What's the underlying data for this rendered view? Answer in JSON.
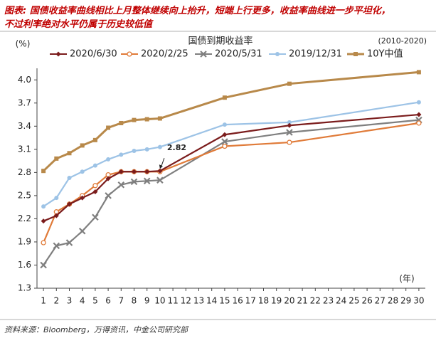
{
  "chart_data": {
    "type": "line",
    "title": [
      "图表: 国债收益率曲线相比上月整体继续向上抬升，短端上行更多，收益率曲线进一步平坦化，",
      "不过利率绝对水平仍属于历史较低值"
    ],
    "subtitle": "国债到期收益率",
    "note": "(2010-2020)",
    "y_label": "(%)",
    "x_label": "(年)",
    "source": "资料来源：Bloomberg，万得资讯，中金公司研究部",
    "x": [
      1,
      2,
      3,
      4,
      5,
      6,
      7,
      8,
      9,
      10,
      15,
      20,
      30
    ],
    "series": [
      {
        "name": "2020/6/30",
        "color": "#7b1c1c",
        "marker": "diamond",
        "values": [
          2.17,
          2.24,
          2.39,
          2.47,
          2.55,
          2.72,
          2.81,
          2.81,
          2.81,
          2.82,
          3.29,
          3.41,
          3.55
        ]
      },
      {
        "name": "2020/2/25",
        "color": "#e07b39",
        "marker": "circle-open",
        "values": [
          1.89,
          2.29,
          2.39,
          2.5,
          2.63,
          2.77,
          2.81,
          2.81,
          2.81,
          2.81,
          3.14,
          3.19,
          3.44
        ]
      },
      {
        "name": "2020/5/31",
        "color": "#7f7f7f",
        "marker": "x",
        "values": [
          1.6,
          1.85,
          1.89,
          2.04,
          2.22,
          2.5,
          2.64,
          2.68,
          2.69,
          2.7,
          3.2,
          3.32,
          3.48
        ]
      },
      {
        "name": "2019/12/31",
        "color": "#9dc3e6",
        "marker": "circle",
        "values": [
          2.36,
          2.47,
          2.73,
          2.81,
          2.89,
          2.97,
          3.03,
          3.08,
          3.1,
          3.13,
          3.42,
          3.45,
          3.71
        ]
      },
      {
        "name": "10Y中值",
        "color": "#b8894a",
        "marker": "square",
        "values": [
          2.82,
          2.98,
          3.05,
          3.15,
          3.22,
          3.38,
          3.44,
          3.48,
          3.49,
          3.5,
          3.77,
          3.95,
          4.1
        ]
      }
    ],
    "annotations": [
      {
        "x": 10,
        "value": 2.82
      }
    ],
    "xlim": [
      0.5,
      30.5
    ],
    "xticks": [
      1,
      2,
      3,
      4,
      5,
      6,
      7,
      8,
      9,
      10,
      11,
      12,
      13,
      14,
      15,
      16,
      17,
      18,
      19,
      20,
      21,
      22,
      23,
      24,
      25,
      26,
      27,
      28,
      29,
      30
    ],
    "ylim": [
      1.3,
      4.15
    ],
    "yticks": [
      1.3,
      1.6,
      1.9,
      2.2,
      2.5,
      2.8,
      3.1,
      3.4,
      3.7,
      {
        "value": 4,
        "label": "4.0"
      }
    ],
    "grid": false
  }
}
